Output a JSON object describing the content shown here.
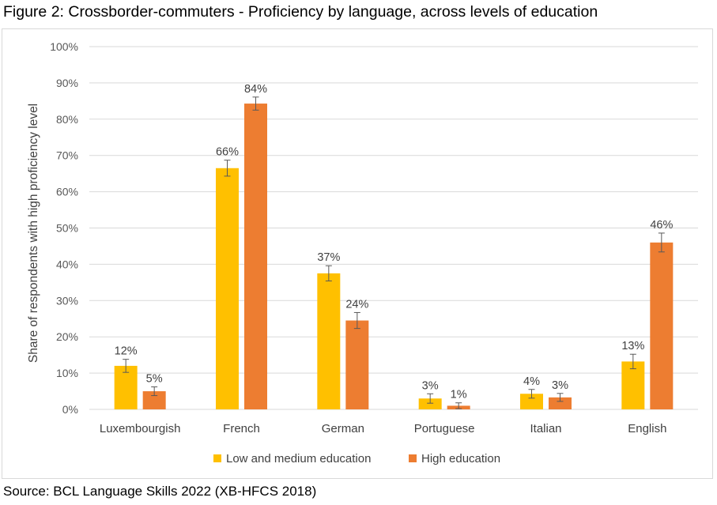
{
  "title": "Figure 2: Crossborder-commuters - Proficiency by language, across levels of education",
  "source": "Source: BCL Language Skills 2022 (XB-HFCS 2018)",
  "colors": {
    "low_medium": "#FFC000",
    "high": "#ED7D31",
    "grid": "#D9D9D9",
    "error_bar": "#595959"
  },
  "chart_data": {
    "type": "bar",
    "title": "Figure 2: Crossborder-commuters - Proficiency by language, across levels of education",
    "xlabel": "",
    "ylabel": "Share of respondents with high proficiency level",
    "ylim": [
      0,
      100
    ],
    "y_ticks": [
      "0%",
      "10%",
      "20%",
      "30%",
      "40%",
      "50%",
      "60%",
      "70%",
      "80%",
      "90%",
      "100%"
    ],
    "grid": true,
    "legend_position": "bottom",
    "categories": [
      "Luxembourgish",
      "French",
      "German",
      "Portuguese",
      "Italian",
      "English"
    ],
    "series": [
      {
        "name": "Low and medium education",
        "values": [
          12,
          66.5,
          37.5,
          3,
          4.3,
          13.2
        ],
        "labels": [
          "12%",
          "66%",
          "37%",
          "3%",
          "4%",
          "13%"
        ],
        "error": [
          1.8,
          2.2,
          2.1,
          1.3,
          1.2,
          2.0
        ]
      },
      {
        "name": "High education",
        "values": [
          5,
          84.3,
          24.5,
          1,
          3.3,
          46
        ],
        "labels": [
          "5%",
          "84%",
          "24%",
          "1%",
          "3%",
          "46%"
        ],
        "error": [
          1.2,
          1.8,
          2.2,
          0.8,
          1.1,
          2.6
        ]
      }
    ]
  }
}
